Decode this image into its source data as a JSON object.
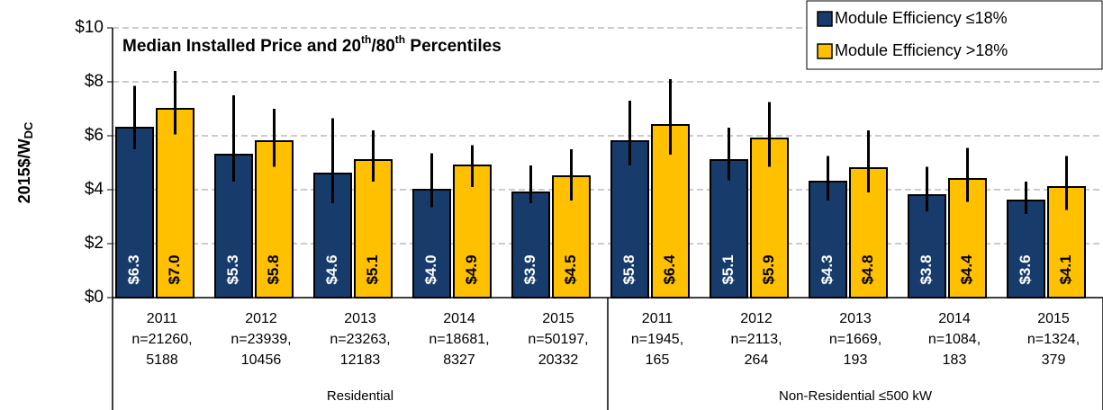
{
  "chart_data": {
    "type": "bar",
    "title": [
      "Median Installed Price and 20",
      "th",
      "/80",
      "th",
      " Percentiles"
    ],
    "y_label": [
      "2015$/W",
      "DC"
    ],
    "groups": [
      {
        "name": "Residential",
        "categories": [
          [
            "2011",
            "n=21260,",
            "5188"
          ],
          [
            "2012",
            "n=23939,",
            "10456"
          ],
          [
            "2013",
            "n=23263,",
            "12183"
          ],
          [
            "2014",
            "n=18681,",
            "8327"
          ],
          [
            "2015",
            "n=50197,",
            "20332"
          ]
        ]
      },
      {
        "name": "Non-Residential  ≤500  kW",
        "categories": [
          [
            "2011",
            "n=1945,",
            "165"
          ],
          [
            "2012",
            "n=2113,",
            "264"
          ],
          [
            "2013",
            "n=1669,",
            "193"
          ],
          [
            "2014",
            "n=1084,",
            "183"
          ],
          [
            "2015",
            "n=1324,",
            "379"
          ]
        ]
      }
    ],
    "series": [
      {
        "name": "Module  Efficiency ≤18%",
        "color": "#173c6b",
        "values": [
          6.3,
          5.3,
          4.6,
          4.0,
          3.9,
          5.8,
          5.1,
          4.3,
          3.8,
          3.6
        ],
        "value_labels": [
          "$6.3",
          "$5.3",
          "$4.6",
          "$4.0",
          "$3.9",
          "$5.8",
          "$5.1",
          "$4.3",
          "$3.8",
          "$3.6"
        ],
        "p20": [
          5.5,
          4.3,
          3.5,
          3.35,
          3.5,
          4.9,
          4.35,
          3.6,
          3.2,
          3.1
        ],
        "p80": [
          7.85,
          7.5,
          6.65,
          5.35,
          4.9,
          7.3,
          6.3,
          5.25,
          4.85,
          4.3
        ]
      },
      {
        "name": "Module  Efficiency >18%",
        "color": "#ffc000",
        "values": [
          7.0,
          5.8,
          5.1,
          4.9,
          4.5,
          6.4,
          5.9,
          4.8,
          4.4,
          4.1
        ],
        "value_labels": [
          "$7.0",
          "$5.8",
          "$5.1",
          "$4.9",
          "$4.5",
          "$6.4",
          "$5.9",
          "$4.8",
          "$4.4",
          "$4.1"
        ],
        "p20": [
          6.05,
          4.85,
          4.3,
          4.1,
          3.6,
          5.3,
          4.85,
          3.9,
          3.55,
          3.25
        ],
        "p80": [
          8.4,
          7.0,
          6.2,
          5.65,
          5.5,
          8.1,
          7.25,
          6.2,
          5.55,
          5.25
        ]
      }
    ],
    "ylim": [
      0,
      10
    ],
    "yticks": [
      {
        "value": 0,
        "label": "$0"
      },
      {
        "value": 2,
        "label": "$2"
      },
      {
        "value": 4,
        "label": "$4"
      },
      {
        "value": 6,
        "label": "$6"
      },
      {
        "value": 8,
        "label": "$8"
      },
      {
        "value": 10,
        "label": "$10"
      }
    ],
    "grid": true,
    "legend": "top-right"
  }
}
